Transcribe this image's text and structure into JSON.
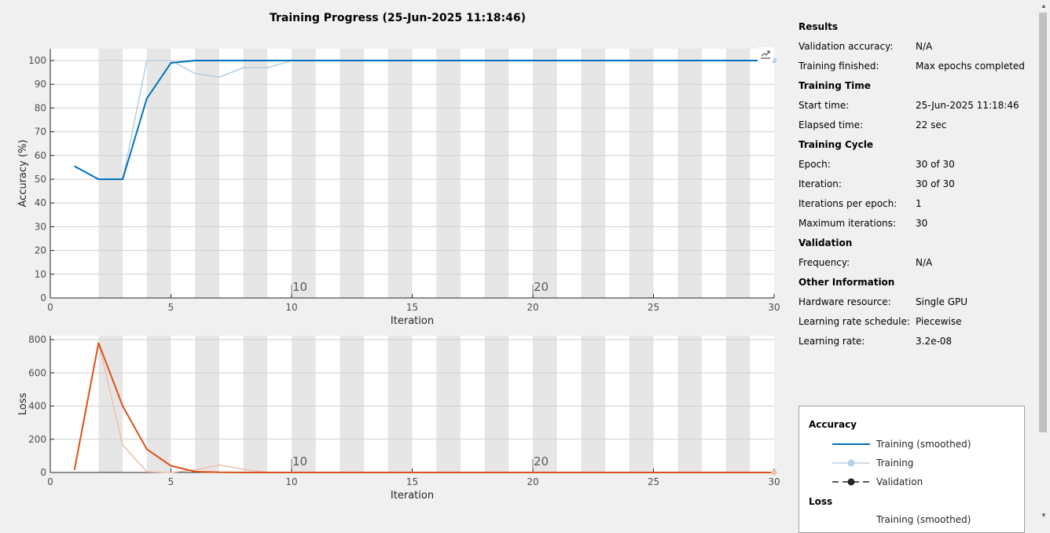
{
  "title": "Training Progress (25-Jun-2025 11:18:46)",
  "colors": {
    "acc_smoothed": "#0072bd",
    "acc_raw": "#b8d0e3",
    "loss_smoothed": "#d95319",
    "loss_raw": "#ecc2b2",
    "epoch_band": "#e6e6e6"
  },
  "chart_data": [
    {
      "type": "line",
      "xlabel": "Iteration",
      "ylabel": "Accuracy (%)",
      "xlim": [
        0,
        30
      ],
      "ylim": [
        0,
        100
      ],
      "xticks": [
        0,
        5,
        10,
        15,
        20,
        25,
        30
      ],
      "yticks": [
        0,
        10,
        20,
        30,
        40,
        50,
        60,
        70,
        80,
        90,
        100
      ],
      "epoch_labels": [
        {
          "x": 10,
          "label": "10"
        },
        {
          "x": 20,
          "label": "20"
        }
      ],
      "grid": true,
      "series": [
        {
          "name": "Training (smoothed)",
          "x": [
            1,
            2,
            3,
            4,
            5,
            6,
            7,
            8,
            9,
            10,
            11,
            12,
            13,
            14,
            15,
            16,
            17,
            18,
            19,
            20,
            21,
            22,
            23,
            24,
            25,
            26,
            27,
            28,
            29,
            30
          ],
          "values": [
            55.5,
            50,
            50,
            84,
            99,
            100,
            100,
            100,
            100,
            100,
            100,
            100,
            100,
            100,
            100,
            100,
            100,
            100,
            100,
            100,
            100,
            100,
            100,
            100,
            100,
            100,
            100,
            100,
            100,
            100
          ]
        },
        {
          "name": "Training",
          "x": [
            1,
            2,
            3,
            4,
            5,
            6,
            7,
            8,
            9,
            10,
            11,
            12,
            13,
            14,
            15,
            16,
            17,
            18,
            19,
            20,
            21,
            22,
            23,
            24,
            25,
            26,
            27,
            28,
            29,
            30
          ],
          "values": [
            55.5,
            50,
            50,
            100,
            100,
            94.5,
            93,
            97,
            97,
            100,
            100,
            100,
            100,
            100,
            100,
            100,
            100,
            100,
            100,
            100,
            100,
            100,
            100,
            100,
            100,
            100,
            100,
            100,
            100,
            100
          ]
        }
      ]
    },
    {
      "type": "line",
      "xlabel": "Iteration",
      "ylabel": "Loss",
      "xlim": [
        0,
        30
      ],
      "ylim": [
        0,
        800
      ],
      "xticks": [
        0,
        5,
        10,
        15,
        20,
        25,
        30
      ],
      "yticks": [
        0,
        200,
        400,
        600,
        800
      ],
      "epoch_labels": [
        {
          "x": 10,
          "label": "10"
        },
        {
          "x": 20,
          "label": "20"
        }
      ],
      "grid": true,
      "series": [
        {
          "name": "Training (smoothed)",
          "x": [
            1,
            2,
            3,
            4,
            5,
            6,
            7,
            8,
            9,
            10,
            11,
            12,
            13,
            14,
            15,
            16,
            17,
            18,
            19,
            20,
            21,
            22,
            23,
            24,
            25,
            26,
            27,
            28,
            29,
            30
          ],
          "values": [
            15,
            780,
            400,
            140,
            40,
            5,
            1,
            0,
            0,
            0,
            0,
            0,
            0,
            0,
            0,
            0,
            0,
            0,
            0,
            0,
            0,
            0,
            0,
            0,
            0,
            0,
            0,
            0,
            0,
            0
          ]
        },
        {
          "name": "Training",
          "x": [
            1,
            2,
            3,
            4,
            5,
            6,
            7,
            8,
            9,
            10,
            11,
            12,
            13,
            14,
            15,
            16,
            17,
            18,
            19,
            20,
            21,
            22,
            23,
            24,
            25,
            26,
            27,
            28,
            29,
            30
          ],
          "values": [
            15,
            780,
            165,
            5,
            0,
            15,
            45,
            20,
            0,
            0,
            0,
            0,
            0,
            0,
            0,
            0,
            0,
            0,
            0,
            0,
            0,
            0,
            0,
            0,
            0,
            0,
            0,
            0,
            0,
            0
          ]
        }
      ]
    }
  ],
  "info": {
    "sections": [
      {
        "title": "Results",
        "rows": [
          {
            "key": "Validation accuracy:",
            "value": "N/A"
          },
          {
            "key": "Training finished:",
            "value": "Max epochs completed"
          }
        ]
      },
      {
        "title": "Training Time",
        "rows": [
          {
            "key": "Start time:",
            "value": "25-Jun-2025 11:18:46"
          },
          {
            "key": "Elapsed time:",
            "value": "22 sec"
          }
        ]
      },
      {
        "title": "Training Cycle",
        "rows": [
          {
            "key": "Epoch:",
            "value": "30 of 30"
          },
          {
            "key": "Iteration:",
            "value": "30 of 30"
          },
          {
            "key": "Iterations per epoch:",
            "value": "1"
          },
          {
            "key": "Maximum iterations:",
            "value": "30"
          }
        ]
      },
      {
        "title": "Validation",
        "rows": [
          {
            "key": "Frequency:",
            "value": "N/A"
          }
        ]
      },
      {
        "title": "Other Information",
        "rows": [
          {
            "key": "Hardware resource:",
            "value": "Single GPU"
          },
          {
            "key": "Learning rate schedule:",
            "value": "Piecewise"
          },
          {
            "key": "Learning rate:",
            "value": "3.2e-08"
          }
        ]
      }
    ]
  },
  "legend": {
    "accuracy_title": "Accuracy",
    "acc_smoothed": "Training (smoothed)",
    "acc_training": "Training",
    "acc_validation": "Validation",
    "loss_title": "Loss",
    "loss_smoothed": "Training (smoothed)"
  }
}
